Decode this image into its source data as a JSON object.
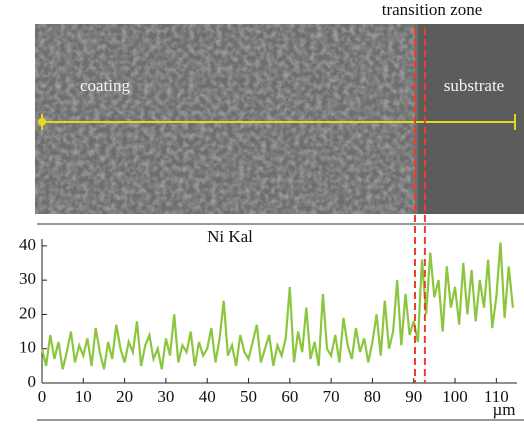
{
  "chart_data": {
    "type": "line",
    "title": "Ni Kal",
    "x_label": "µm",
    "image_labels": {
      "left": "coating",
      "right": "substrate"
    },
    "transition_zone": {
      "label": "transition zone",
      "x": [
        90.3,
        92.7
      ],
      "color": "#e8402a"
    },
    "scan_line_color": "#e6d81e",
    "x": [
      0,
      1,
      2,
      3,
      4,
      5,
      6,
      7,
      8,
      9,
      10,
      11,
      12,
      13,
      14,
      15,
      16,
      17,
      18,
      19,
      20,
      21,
      22,
      23,
      24,
      25,
      26,
      27,
      28,
      29,
      30,
      31,
      32,
      33,
      34,
      35,
      36,
      37,
      38,
      39,
      40,
      41,
      42,
      43,
      44,
      45,
      46,
      47,
      48,
      49,
      50,
      51,
      52,
      53,
      54,
      55,
      56,
      57,
      58,
      59,
      60,
      61,
      62,
      63,
      64,
      65,
      66,
      67,
      68,
      69,
      70,
      71,
      72,
      73,
      74,
      75,
      76,
      77,
      78,
      79,
      80,
      81,
      82,
      83,
      84,
      85,
      86,
      87,
      88,
      89,
      90,
      91,
      92,
      93,
      94,
      95,
      96,
      97,
      98,
      99,
      100,
      101,
      102,
      103,
      104,
      105,
      106,
      107,
      108,
      109,
      110,
      111,
      112,
      113,
      114
    ],
    "values": [
      10,
      5,
      14,
      7,
      12,
      4,
      9,
      15,
      6,
      11,
      8,
      13,
      5,
      16,
      9,
      4,
      12,
      7,
      17,
      10,
      6,
      12,
      9,
      18,
      5,
      11,
      14,
      7,
      10,
      4,
      13,
      8,
      20,
      6,
      11,
      9,
      15,
      5,
      12,
      8,
      10,
      16,
      6,
      13,
      24,
      8,
      11,
      5,
      14,
      9,
      7,
      12,
      17,
      6,
      10,
      14,
      5,
      11,
      8,
      13,
      28,
      6,
      15,
      9,
      22,
      7,
      12,
      5,
      26,
      10,
      8,
      14,
      6,
      19,
      11,
      7,
      16,
      9,
      13,
      6,
      12,
      20,
      8,
      24,
      10,
      15,
      30,
      11,
      26,
      14,
      18,
      12,
      36,
      20,
      38,
      25,
      30,
      15,
      34,
      22,
      28,
      17,
      35,
      20,
      33,
      18,
      30,
      22,
      36,
      16,
      25,
      41,
      19,
      34,
      22
    ],
    "color": "#8cc63f",
    "xlim": [
      0,
      115
    ],
    "xticks": [
      0,
      10,
      20,
      30,
      40,
      50,
      60,
      70,
      80,
      90,
      100,
      110
    ],
    "ylim": [
      0,
      42
    ],
    "yticks": [
      0,
      10,
      20,
      30,
      40
    ]
  }
}
